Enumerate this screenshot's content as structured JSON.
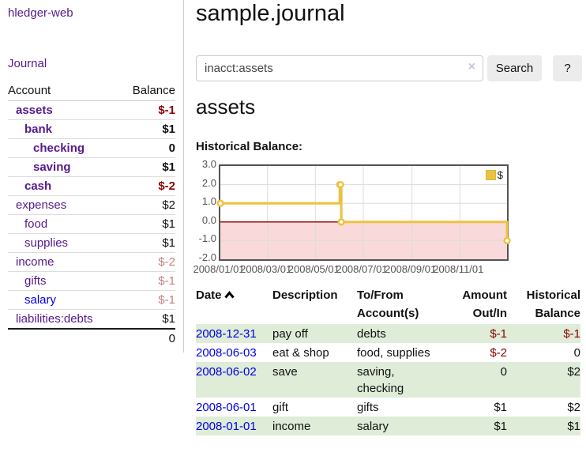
{
  "app": {
    "title": "hledger-web"
  },
  "sidebar": {
    "journal_label": "Journal",
    "accounts": {
      "header_account": "Account",
      "header_balance": "Balance",
      "rows": [
        {
          "label": "assets",
          "depth": 1,
          "bold": true,
          "balance": "$-1",
          "bclass": "neg"
        },
        {
          "label": "bank",
          "depth": 2,
          "bold": true,
          "balance": "$1",
          "bclass": ""
        },
        {
          "label": "checking",
          "depth": 3,
          "bold": true,
          "balance": "0",
          "bclass": ""
        },
        {
          "label": "saving",
          "depth": 3,
          "bold": true,
          "balance": "$1",
          "bclass": ""
        },
        {
          "label": "cash",
          "depth": 2,
          "bold": true,
          "balance": "$-2",
          "bclass": "neg"
        },
        {
          "label": "expenses",
          "depth": 1,
          "bold": false,
          "balance": "$2",
          "bclass": ""
        },
        {
          "label": "food",
          "depth": 2,
          "bold": false,
          "balance": "$1",
          "bclass": ""
        },
        {
          "label": "supplies",
          "depth": 2,
          "bold": false,
          "balance": "$1",
          "bclass": ""
        },
        {
          "label": "income",
          "depth": 1,
          "bold": false,
          "balance": "$-2",
          "bclass": "negfade"
        },
        {
          "label": "gifts",
          "depth": 2,
          "bold": false,
          "balance": "$-1",
          "bclass": "negfade"
        },
        {
          "label": "salary",
          "depth": 2,
          "bold": false,
          "balance": "$-1",
          "bclass": "negfade",
          "unvisited": true
        },
        {
          "label": "liabilities:debts",
          "depth": 1,
          "bold": false,
          "balance": "$1",
          "bclass": ""
        }
      ],
      "total": "0"
    }
  },
  "main": {
    "title": "sample.journal",
    "search": {
      "value": "inacct:assets",
      "clear_icon": "×",
      "button_label": "Search",
      "help_label": "?"
    },
    "account_heading": "assets",
    "chart_label": "Historical Balance:",
    "register": {
      "headers": [
        "Date",
        "Description",
        "To/From Account(s)",
        "Amount Out/In",
        "Historical Balance"
      ],
      "rows": [
        {
          "date": "2008-12-31",
          "description": "pay off",
          "accounts": "debts",
          "amount": "$-1",
          "aclass": "neg",
          "balance": "$-1",
          "bclass": "neg"
        },
        {
          "date": "2008-06-03",
          "description": "eat & shop",
          "accounts": "food, supplies",
          "amount": "$-2",
          "aclass": "neg",
          "balance": "0",
          "bclass": ""
        },
        {
          "date": "2008-06-02",
          "description": "save",
          "accounts": "saving, checking",
          "amount": "0",
          "aclass": "",
          "balance": "$2",
          "bclass": ""
        },
        {
          "date": "2008-06-01",
          "description": "gift",
          "accounts": "gifts",
          "amount": "$1",
          "aclass": "",
          "balance": "$2",
          "bclass": ""
        },
        {
          "date": "2008-01-01",
          "description": "income",
          "accounts": "salary",
          "amount": "$1",
          "aclass": "",
          "balance": "$1",
          "bclass": ""
        }
      ]
    }
  },
  "chart_data": {
    "type": "line",
    "step": true,
    "title": "Historical Balance",
    "series": [
      {
        "name": "$",
        "color": "#EDC240",
        "points": [
          [
            "2008-01-01",
            1
          ],
          [
            "2008-06-01",
            2
          ],
          [
            "2008-06-02",
            2
          ],
          [
            "2008-06-03",
            0
          ],
          [
            "2008-12-31",
            -1
          ]
        ]
      }
    ],
    "x_start": "2008-01-01",
    "x_end": "2008-12-31",
    "ylim": [
      -2,
      3
    ],
    "ytick_values": [
      3,
      2,
      1,
      0,
      -1,
      -2
    ],
    "ytick_labels": [
      "3.0",
      "2.0",
      "1.0",
      "0.0",
      "-1.0",
      "-2.0"
    ],
    "xtick_labels": [
      "2008/01/01",
      "2008/03/01",
      "2008/05/01",
      "2008/07/01",
      "2008/09/01",
      "2008/11/01"
    ],
    "legend": {
      "label": "$",
      "position": "top-right"
    },
    "grid": true,
    "colors": {
      "series": "#EDC240",
      "negative_fill": "#f9d9d9",
      "zero_line": "#8b0000",
      "grid": "#dcdcdc",
      "border": "#545454"
    }
  }
}
